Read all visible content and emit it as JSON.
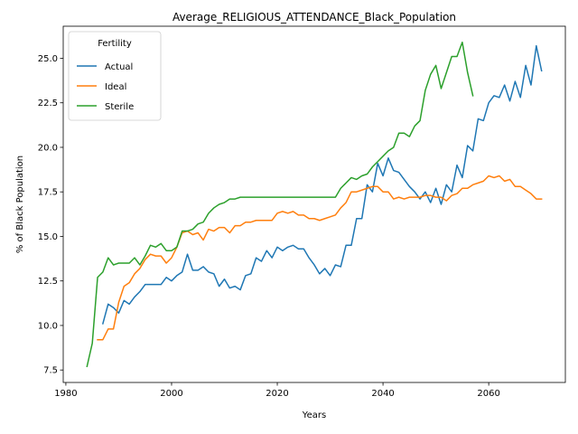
{
  "chart_data": {
    "type": "line",
    "title": "Average_RELIGIOUS_ATTENDANCE_Black_Population",
    "xlabel": "Years",
    "ylabel": "% of Black Population",
    "xlim": [
      1979.5,
      2074.5
    ],
    "ylim": [
      6.8,
      26.8
    ],
    "xticks": [
      1980,
      2000,
      2020,
      2040,
      2060
    ],
    "yticks": [
      7.5,
      10.0,
      12.5,
      15.0,
      17.5,
      20.0,
      22.5,
      25.0
    ],
    "xtick_labels": [
      "1980",
      "2000",
      "2020",
      "2040",
      "2060"
    ],
    "ytick_labels": [
      "7.5",
      "10.0",
      "12.5",
      "15.0",
      "17.5",
      "20.0",
      "22.5",
      "25.0"
    ],
    "grid": false,
    "legend": {
      "title": "Fertility",
      "placement": "upper left"
    },
    "series": [
      {
        "name": "Actual",
        "color": "#1f77b4",
        "x": [
          1987,
          1988,
          1989,
          1990,
          1991,
          1992,
          1993,
          1994,
          1995,
          1996,
          1997,
          1998,
          1999,
          2000,
          2001,
          2002,
          2003,
          2004,
          2005,
          2006,
          2007,
          2008,
          2009,
          2010,
          2011,
          2012,
          2013,
          2014,
          2015,
          2016,
          2017,
          2018,
          2019,
          2020,
          2021,
          2022,
          2023,
          2024,
          2025,
          2026,
          2027,
          2028,
          2029,
          2030,
          2031,
          2032,
          2033,
          2034,
          2035,
          2036,
          2037,
          2038,
          2039,
          2040,
          2041,
          2042,
          2043,
          2044,
          2045,
          2046,
          2047,
          2048,
          2049,
          2050,
          2051,
          2052,
          2053,
          2054,
          2055,
          2056,
          2057,
          2058,
          2059,
          2060,
          2061,
          2062,
          2063,
          2064,
          2065,
          2066,
          2067,
          2068,
          2069,
          2070
        ],
        "y": [
          10.1,
          11.2,
          11.0,
          10.7,
          11.4,
          11.2,
          11.6,
          11.9,
          12.3,
          12.3,
          12.3,
          12.3,
          12.7,
          12.5,
          12.8,
          13.0,
          14.0,
          13.1,
          13.1,
          13.3,
          13.0,
          12.9,
          12.2,
          12.6,
          12.1,
          12.2,
          12.0,
          12.8,
          12.9,
          13.8,
          13.6,
          14.2,
          13.8,
          14.4,
          14.2,
          14.4,
          14.5,
          14.3,
          14.3,
          13.8,
          13.4,
          12.9,
          13.2,
          12.8,
          13.4,
          13.3,
          14.5,
          14.5,
          16.0,
          16.0,
          17.9,
          17.5,
          19.1,
          18.4,
          19.4,
          18.7,
          18.6,
          18.2,
          17.8,
          17.5,
          17.1,
          17.5,
          16.9,
          17.7,
          16.8,
          17.9,
          17.5,
          19.0,
          18.3,
          20.1,
          19.8,
          21.6,
          21.5,
          22.5,
          22.9,
          22.8,
          23.5,
          22.6,
          23.7,
          22.8,
          24.6,
          23.5,
          25.7,
          24.3
        ]
      },
      {
        "name": "Ideal",
        "color": "#ff7f0e",
        "x": [
          1986,
          1987,
          1988,
          1989,
          1990,
          1991,
          1992,
          1993,
          1994,
          1995,
          1996,
          1997,
          1998,
          1999,
          2000,
          2001,
          2002,
          2003,
          2004,
          2005,
          2006,
          2007,
          2008,
          2009,
          2010,
          2011,
          2012,
          2013,
          2014,
          2015,
          2016,
          2017,
          2018,
          2019,
          2020,
          2021,
          2022,
          2023,
          2024,
          2025,
          2026,
          2027,
          2028,
          2029,
          2030,
          2031,
          2032,
          2033,
          2034,
          2035,
          2036,
          2037,
          2038,
          2039,
          2040,
          2041,
          2042,
          2043,
          2044,
          2045,
          2046,
          2047,
          2048,
          2049,
          2050,
          2051,
          2052,
          2053,
          2054,
          2055,
          2056,
          2057,
          2058,
          2059,
          2060,
          2061,
          2062,
          2063,
          2064,
          2065,
          2066,
          2067,
          2068,
          2069,
          2070
        ],
        "y": [
          9.2,
          9.2,
          9.8,
          9.8,
          11.3,
          12.2,
          12.4,
          12.9,
          13.2,
          13.7,
          14.0,
          13.9,
          13.9,
          13.5,
          13.8,
          14.4,
          15.2,
          15.3,
          15.1,
          15.2,
          14.8,
          15.4,
          15.3,
          15.5,
          15.5,
          15.2,
          15.6,
          15.6,
          15.8,
          15.8,
          15.9,
          15.9,
          15.9,
          15.9,
          16.3,
          16.4,
          16.3,
          16.4,
          16.2,
          16.2,
          16.0,
          16.0,
          15.9,
          16.0,
          16.1,
          16.2,
          16.6,
          16.9,
          17.5,
          17.5,
          17.6,
          17.7,
          17.8,
          17.8,
          17.5,
          17.5,
          17.1,
          17.2,
          17.1,
          17.2,
          17.2,
          17.2,
          17.3,
          17.3,
          17.2,
          17.2,
          17.0,
          17.3,
          17.4,
          17.7,
          17.7,
          17.9,
          18.0,
          18.1,
          18.4,
          18.3,
          18.4,
          18.1,
          18.2,
          17.8,
          17.8,
          17.6,
          17.4,
          17.1,
          17.1
        ]
      },
      {
        "name": "Sterile",
        "color": "#2ca02c",
        "x": [
          1984,
          1985,
          1986,
          1987,
          1988,
          1989,
          1990,
          1991,
          1992,
          1993,
          1994,
          1995,
          1996,
          1997,
          1998,
          1999,
          2000,
          2001,
          2002,
          2003,
          2004,
          2005,
          2006,
          2007,
          2008,
          2009,
          2010,
          2011,
          2012,
          2013,
          2014,
          2015,
          2016,
          2017,
          2018,
          2019,
          2020,
          2021,
          2022,
          2023,
          2024,
          2025,
          2026,
          2027,
          2028,
          2029,
          2030,
          2031,
          2032,
          2033,
          2034,
          2035,
          2036,
          2037,
          2038,
          2039,
          2040,
          2041,
          2042,
          2043,
          2044,
          2045,
          2046,
          2047,
          2048,
          2049,
          2050,
          2051,
          2052,
          2053,
          2054,
          2055,
          2056,
          2057
        ],
        "y": [
          7.7,
          9.0,
          12.7,
          13.0,
          13.8,
          13.4,
          13.5,
          13.5,
          13.5,
          13.8,
          13.4,
          13.9,
          14.5,
          14.4,
          14.6,
          14.2,
          14.2,
          14.4,
          15.3,
          15.3,
          15.4,
          15.7,
          15.8,
          16.3,
          16.6,
          16.8,
          16.9,
          17.1,
          17.1,
          17.2,
          17.2,
          17.2,
          17.2,
          17.2,
          17.2,
          17.2,
          17.2,
          17.2,
          17.2,
          17.2,
          17.2,
          17.2,
          17.2,
          17.2,
          17.2,
          17.2,
          17.2,
          17.2,
          17.7,
          18.0,
          18.3,
          18.2,
          18.4,
          18.5,
          18.9,
          19.2,
          19.5,
          19.8,
          20.0,
          20.8,
          20.8,
          20.6,
          21.2,
          21.5,
          23.2,
          24.1,
          24.6,
          23.3,
          24.2,
          25.1,
          25.1,
          25.9,
          24.2,
          22.9
        ]
      }
    ]
  }
}
